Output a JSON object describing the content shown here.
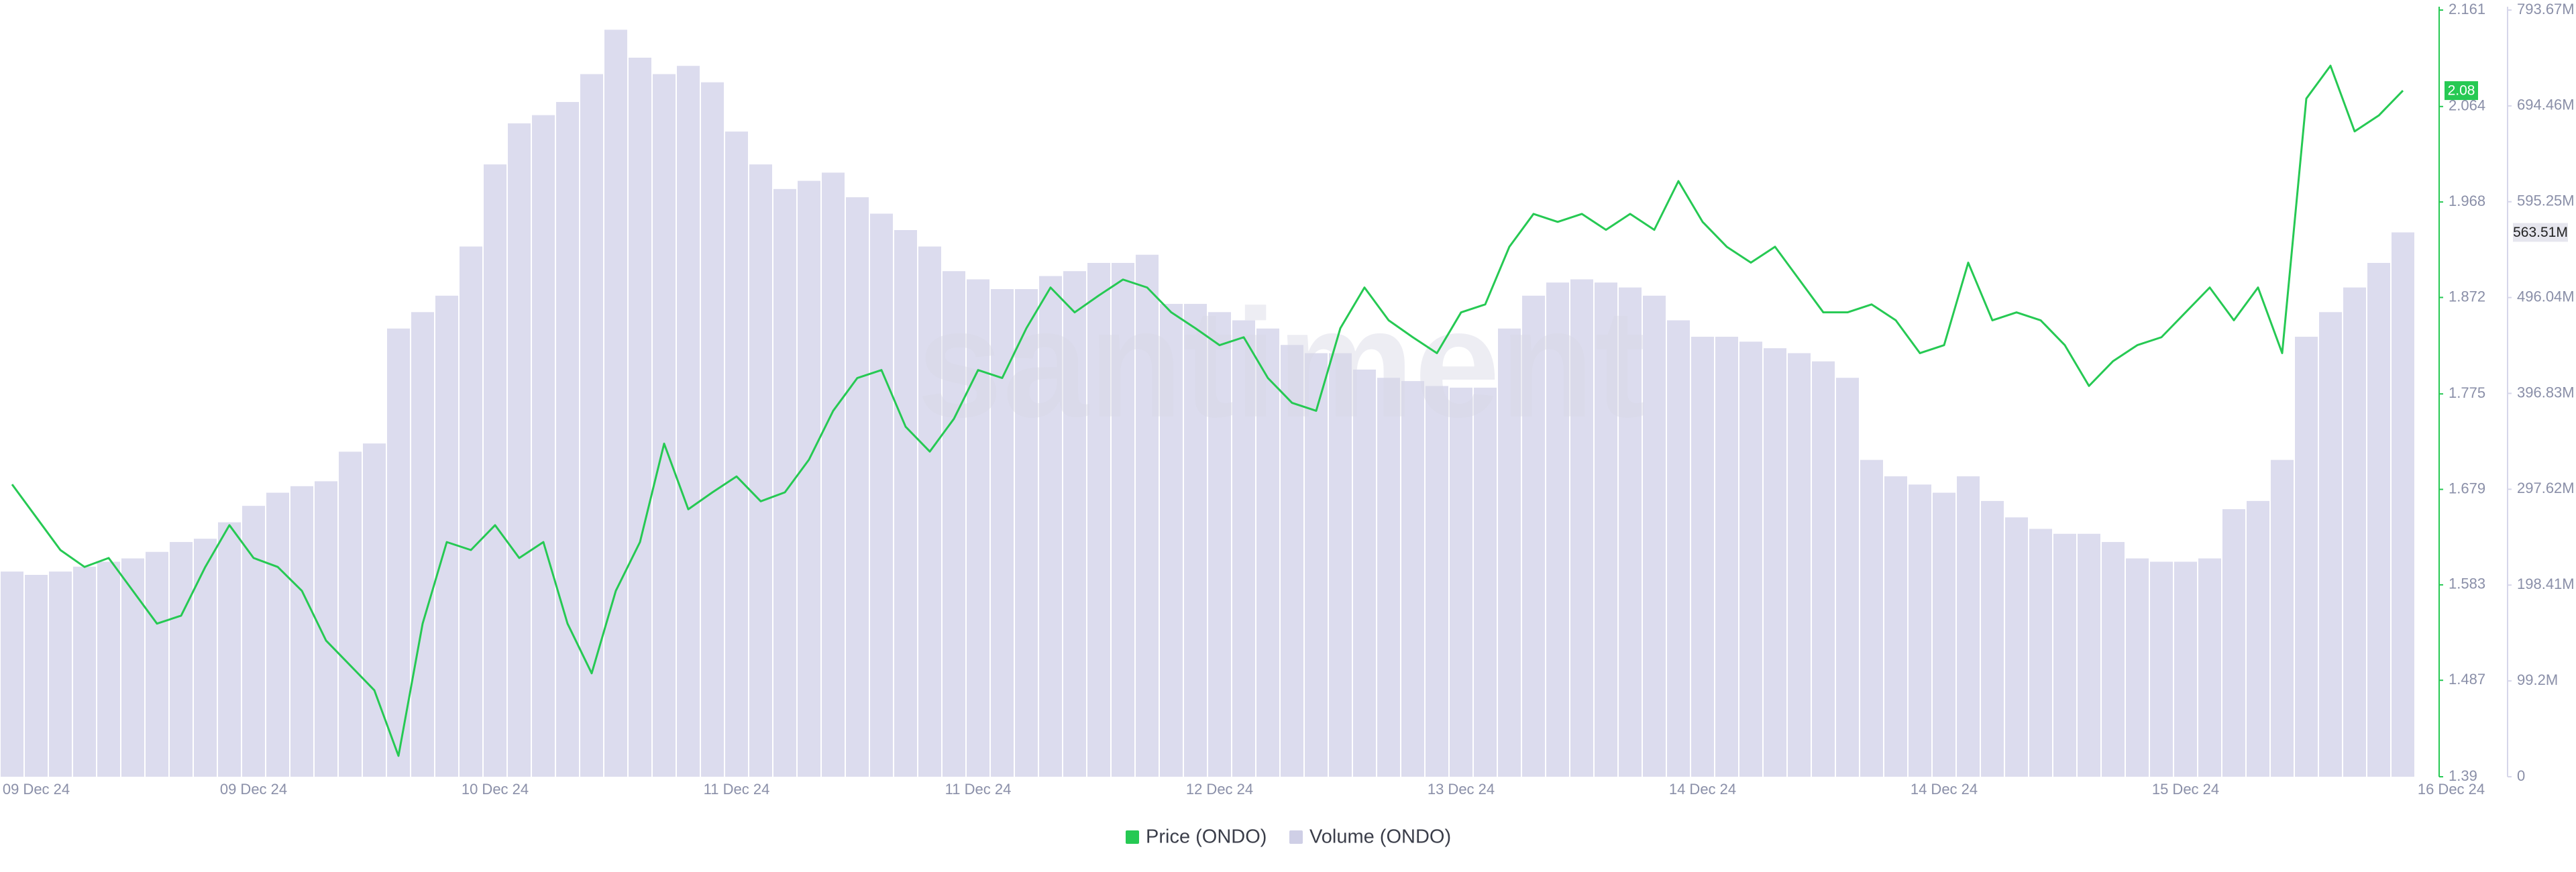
{
  "chart_data": {
    "type": "line",
    "watermark": "santiment",
    "categories": [
      null,
      "09 Dec 24",
      null,
      null,
      null,
      null,
      null,
      null,
      null,
      null,
      "09 Dec 24",
      null,
      null,
      null,
      null,
      null,
      null,
      null,
      null,
      null,
      "10 Dec 24",
      null,
      null,
      null,
      null,
      null,
      null,
      null,
      null,
      null,
      "11 Dec 24",
      null,
      null,
      null,
      null,
      null,
      null,
      null,
      null,
      null,
      "11 Dec 24",
      null,
      null,
      null,
      null,
      null,
      null,
      null,
      null,
      null,
      "12 Dec 24",
      null,
      null,
      null,
      null,
      null,
      null,
      null,
      null,
      null,
      "13 Dec 24",
      null,
      null,
      null,
      null,
      null,
      null,
      null,
      null,
      null,
      "14 Dec 24",
      null,
      null,
      null,
      null,
      null,
      null,
      null,
      null,
      null,
      "14 Dec 24",
      null,
      null,
      null,
      null,
      null,
      null,
      null,
      null,
      null,
      "15 Dec 24",
      null,
      null,
      null,
      null,
      null,
      null,
      null,
      null,
      null,
      null,
      "16 Dec 24"
    ],
    "series": [
      {
        "name": "Price (ONDO)",
        "color": "#26c953",
        "axis": "y",
        "last_label": "2.08",
        "values": [
          1.684,
          1.651,
          1.618,
          1.601,
          1.61,
          1.577,
          1.544,
          1.552,
          1.601,
          1.643,
          1.61,
          1.601,
          1.577,
          1.527,
          1.502,
          1.477,
          1.411,
          1.544,
          1.626,
          1.618,
          1.643,
          1.61,
          1.626,
          1.544,
          1.494,
          1.577,
          1.626,
          1.725,
          1.659,
          1.676,
          1.692,
          1.667,
          1.676,
          1.709,
          1.758,
          1.791,
          1.799,
          1.742,
          1.717,
          1.75,
          1.799,
          1.791,
          1.841,
          1.882,
          1.857,
          1.874,
          1.89,
          1.882,
          1.857,
          1.841,
          1.824,
          1.832,
          1.791,
          1.766,
          1.758,
          1.841,
          1.882,
          1.849,
          1.832,
          1.816,
          1.857,
          1.865,
          1.923,
          1.956,
          1.948,
          1.956,
          1.94,
          1.956,
          1.94,
          1.989,
          1.948,
          1.923,
          1.907,
          1.923,
          1.89,
          1.857,
          1.857,
          1.865,
          1.849,
          1.816,
          1.824,
          1.907,
          1.849,
          1.857,
          1.849,
          1.824,
          1.783,
          1.808,
          1.824,
          1.832,
          1.857,
          1.882,
          1.849,
          1.882,
          1.816,
          2.072,
          2.105,
          2.039,
          2.055,
          2.08,
          null,
          null
        ]
      },
      {
        "name": "Volume (ONDO)",
        "color": "#dcdcee",
        "axis": "y2",
        "last_label": "563.51M",
        "values": [
          212.4,
          209.0,
          212.4,
          217.5,
          222.6,
          226.0,
          232.8,
          243.0,
          246.4,
          263.4,
          280.4,
          294.0,
          300.8,
          305.9,
          336.5,
          345.0,
          464.0,
          481.0,
          498.0,
          548.9,
          633.9,
          676.4,
          684.9,
          698.5,
          727.4,
          773.3,
          744.4,
          727.4,
          735.9,
          718.9,
          667.9,
          633.9,
          608.4,
          616.9,
          625.4,
          599.9,
          582.9,
          565.9,
          548.9,
          523.4,
          514.9,
          504.8,
          504.8,
          518.3,
          523.4,
          531.9,
          531.9,
          540.4,
          489.5,
          489.5,
          481.0,
          472.5,
          464.0,
          447.0,
          438.5,
          438.5,
          421.5,
          413.0,
          409.6,
          404.5,
          402.8,
          402.8,
          464.0,
          498.0,
          511.6,
          514.9,
          511.6,
          506.5,
          498.0,
          472.5,
          455.5,
          455.5,
          450.4,
          443.6,
          438.5,
          430.0,
          413.0,
          328.0,
          311.0,
          302.5,
          294.0,
          311.0,
          285.5,
          268.5,
          256.6,
          251.5,
          251.5,
          243.0,
          226.0,
          222.6,
          222.6,
          226.0,
          277.0,
          285.5,
          328.0,
          455.5,
          481.0,
          506.5,
          531.9,
          563.51,
          null,
          null
        ]
      }
    ],
    "ylim": [
      1.39,
      2.161
    ],
    "yticks": [
      2.161,
      2.064,
      1.968,
      1.872,
      1.775,
      1.679,
      1.583,
      1.487,
      1.39
    ],
    "y2lim": [
      0,
      793.67
    ],
    "y2ticks": [
      {
        "value": 793.67,
        "label": "793.67M"
      },
      {
        "value": 694.46,
        "label": "694.46M"
      },
      {
        "value": 595.25,
        "label": "595.25M"
      },
      {
        "value": 496.04,
        "label": "496.04M"
      },
      {
        "value": 396.83,
        "label": "396.83M"
      },
      {
        "value": 297.62,
        "label": "297.62M"
      },
      {
        "value": 198.41,
        "label": "198.41M"
      },
      {
        "value": 99.2,
        "label": "99.2M"
      },
      0
    ],
    "legend": "bottom"
  }
}
